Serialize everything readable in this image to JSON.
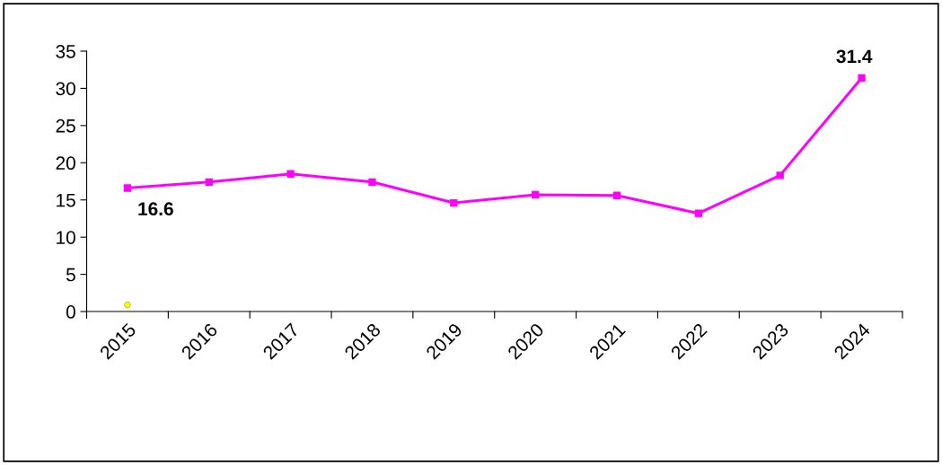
{
  "chart_data": {
    "type": "line",
    "categories": [
      "2015",
      "2016",
      "2017",
      "2018",
      "2019",
      "2020",
      "2021",
      "2022",
      "2023",
      "2024"
    ],
    "series": [
      {
        "color": "#ff00ff",
        "values": [
          16.6,
          17.4,
          18.5,
          17.4,
          14.6,
          15.7,
          15.6,
          13.2,
          18.3,
          31.4
        ],
        "value_labels": [
          "16.6",
          null,
          null,
          null,
          null,
          null,
          null,
          null,
          null,
          "31.4"
        ],
        "marker": "square"
      },
      {
        "type": "scatter",
        "color": "#ffff00",
        "values": [
          0.9,
          null,
          null,
          null,
          null,
          null,
          null,
          null,
          null,
          null
        ],
        "marker": "circle"
      }
    ],
    "ylim": [
      0,
      35
    ],
    "yticks": [
      0,
      5,
      10,
      15,
      20,
      25,
      30,
      35
    ],
    "grid": false,
    "legend": false
  }
}
